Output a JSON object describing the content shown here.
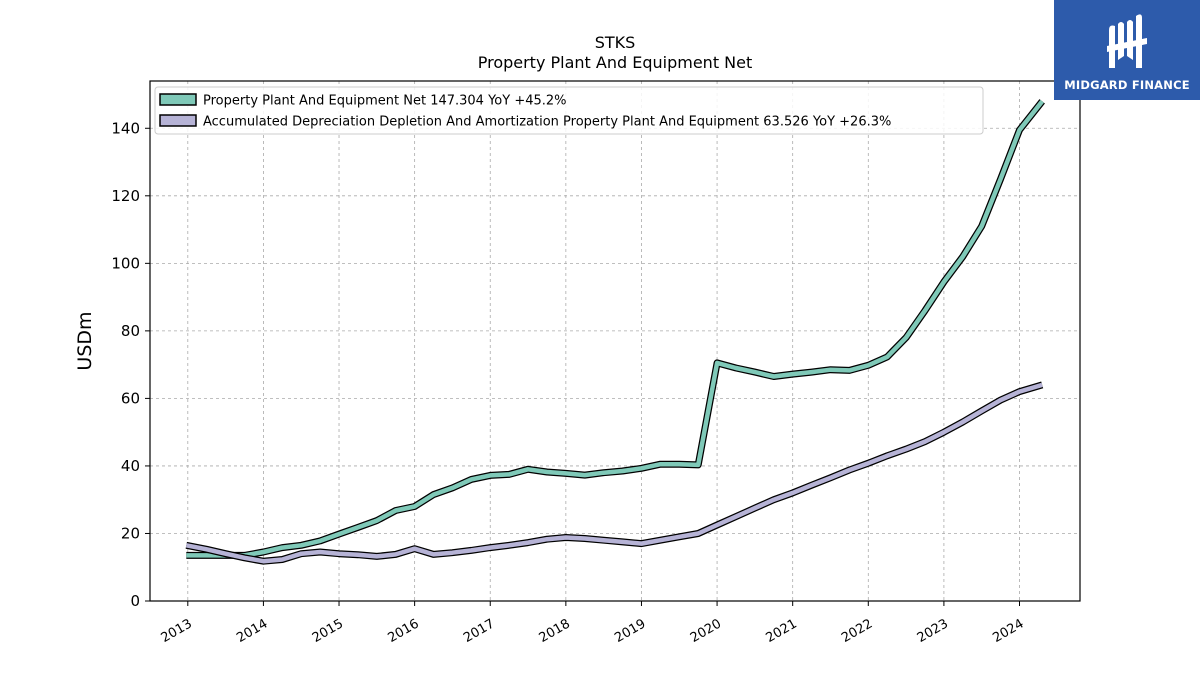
{
  "brand": {
    "name": "MIDGARD FINANCE",
    "bg_color": "#2d5bab"
  },
  "chart_data": {
    "type": "line",
    "title": "STKS",
    "subtitle": "Property Plant And Equipment Net",
    "ylabel": "USDm",
    "xlabel": "",
    "ylim": [
      0,
      154
    ],
    "yticks": [
      0,
      20,
      40,
      60,
      80,
      100,
      120,
      140
    ],
    "xlim": [
      2012.5,
      2024.8
    ],
    "xticks": [
      "2013",
      "2014",
      "2015",
      "2016",
      "2017",
      "2018",
      "2019",
      "2020",
      "2021",
      "2022",
      "2023",
      "2024"
    ],
    "grid": true,
    "legend_position": "top-left",
    "series": [
      {
        "name": "Property Plant And Equipment Net",
        "legend_label": "Property Plant And Equipment Net  147.304 YoY +45.2%",
        "color": "#7fc9b8",
        "points": [
          [
            2012.98,
            13.5
          ],
          [
            2013.75,
            13.5
          ],
          [
            2014.0,
            14.5
          ],
          [
            2014.25,
            15.8
          ],
          [
            2014.5,
            16.5
          ],
          [
            2014.75,
            17.8
          ],
          [
            2015.0,
            19.8
          ],
          [
            2015.25,
            21.8
          ],
          [
            2015.5,
            23.8
          ],
          [
            2015.75,
            26.8
          ],
          [
            2016.0,
            28.0
          ],
          [
            2016.25,
            31.5
          ],
          [
            2016.5,
            33.5
          ],
          [
            2016.75,
            36.0
          ],
          [
            2017.0,
            37.2
          ],
          [
            2017.25,
            37.5
          ],
          [
            2017.5,
            39.0
          ],
          [
            2017.75,
            38.2
          ],
          [
            2018.0,
            37.8
          ],
          [
            2018.25,
            37.3
          ],
          [
            2018.5,
            38.0
          ],
          [
            2018.75,
            38.5
          ],
          [
            2019.0,
            39.3
          ],
          [
            2019.25,
            40.5
          ],
          [
            2019.5,
            40.5
          ],
          [
            2019.75,
            40.3
          ],
          [
            2020.0,
            70.5
          ],
          [
            2020.25,
            69.0
          ],
          [
            2020.5,
            67.8
          ],
          [
            2020.75,
            66.5
          ],
          [
            2021.0,
            67.2
          ],
          [
            2021.25,
            67.8
          ],
          [
            2021.5,
            68.5
          ],
          [
            2021.75,
            68.3
          ],
          [
            2022.0,
            69.8
          ],
          [
            2022.25,
            72.3
          ],
          [
            2022.5,
            78.0
          ],
          [
            2022.75,
            86.0
          ],
          [
            2023.0,
            94.5
          ],
          [
            2023.25,
            102.0
          ],
          [
            2023.5,
            111.0
          ],
          [
            2023.75,
            125.0
          ],
          [
            2024.0,
            139.5
          ],
          [
            2024.3,
            148.0
          ]
        ]
      },
      {
        "name": "Accumulated Depreciation Depletion And Amortization Property Plant And Equipment",
        "legend_label": "Accumulated Depreciation Depletion And Amortization Property Plant And Equipment  63.526 YoY +26.3%",
        "color": "#b6b3d6",
        "points": [
          [
            2012.98,
            16.5
          ],
          [
            2013.25,
            15.3
          ],
          [
            2013.5,
            14.0
          ],
          [
            2013.75,
            12.8
          ],
          [
            2014.0,
            11.8
          ],
          [
            2014.25,
            12.3
          ],
          [
            2014.5,
            14.0
          ],
          [
            2014.75,
            14.5
          ],
          [
            2015.0,
            14.0
          ],
          [
            2015.25,
            13.7
          ],
          [
            2015.5,
            13.2
          ],
          [
            2015.75,
            13.8
          ],
          [
            2016.0,
            15.5
          ],
          [
            2016.25,
            13.8
          ],
          [
            2016.5,
            14.3
          ],
          [
            2016.75,
            15.0
          ],
          [
            2017.0,
            15.8
          ],
          [
            2017.25,
            16.5
          ],
          [
            2017.5,
            17.3
          ],
          [
            2017.75,
            18.3
          ],
          [
            2018.0,
            18.8
          ],
          [
            2018.25,
            18.5
          ],
          [
            2018.5,
            18.0
          ],
          [
            2018.75,
            17.5
          ],
          [
            2019.0,
            17.0
          ],
          [
            2019.25,
            18.0
          ],
          [
            2019.5,
            19.0
          ],
          [
            2019.75,
            20.0
          ],
          [
            2020.0,
            22.5
          ],
          [
            2020.25,
            25.0
          ],
          [
            2020.5,
            27.5
          ],
          [
            2020.75,
            30.0
          ],
          [
            2021.0,
            32.0
          ],
          [
            2021.25,
            34.3
          ],
          [
            2021.5,
            36.5
          ],
          [
            2021.75,
            38.8
          ],
          [
            2022.0,
            40.8
          ],
          [
            2022.25,
            43.0
          ],
          [
            2022.5,
            45.0
          ],
          [
            2022.75,
            47.2
          ],
          [
            2023.0,
            50.0
          ],
          [
            2023.25,
            53.0
          ],
          [
            2023.5,
            56.3
          ],
          [
            2023.75,
            59.5
          ],
          [
            2024.0,
            62.0
          ],
          [
            2024.3,
            64.0
          ]
        ]
      }
    ]
  }
}
